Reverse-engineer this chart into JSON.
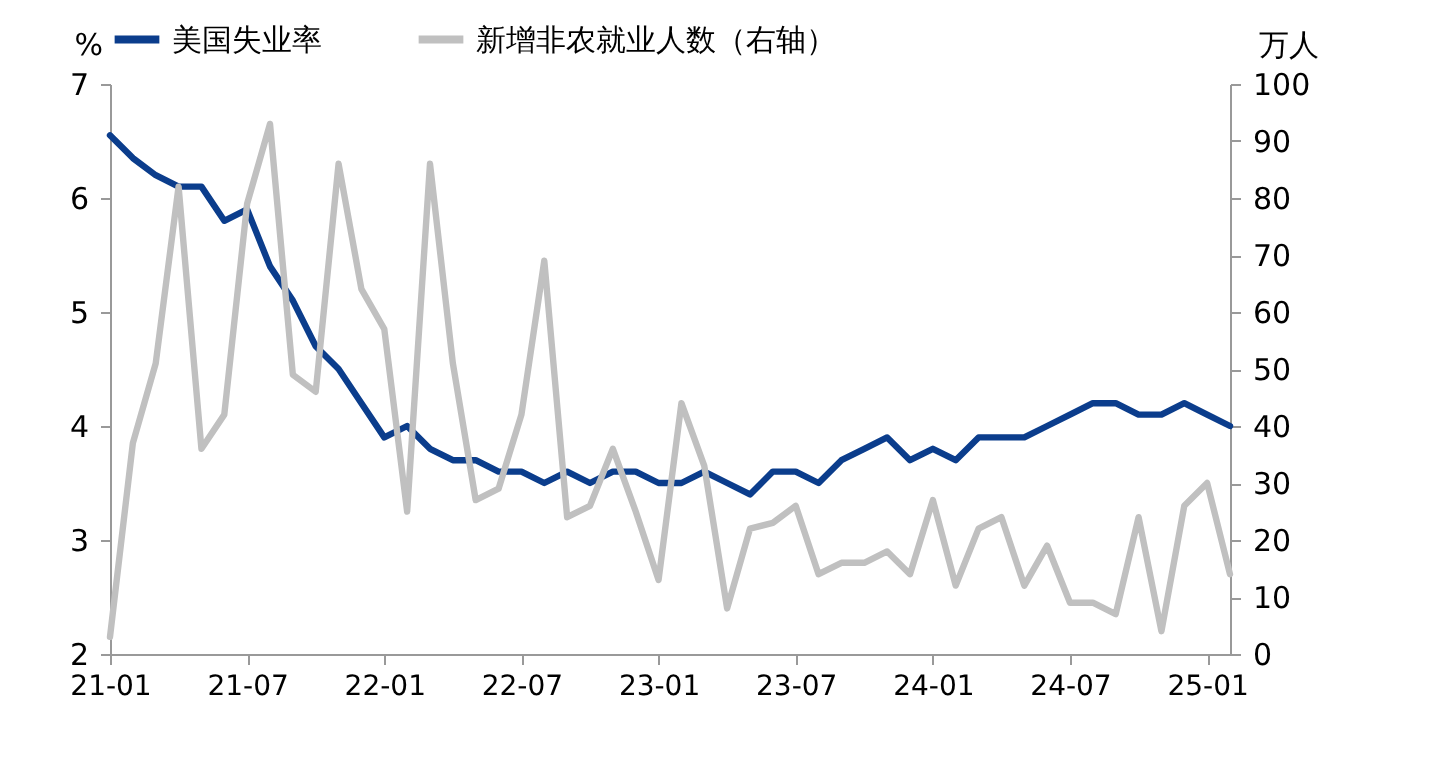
{
  "chart_data": {
    "type": "line",
    "categories": [
      "21-01",
      null,
      null,
      null,
      null,
      null,
      "21-07",
      null,
      null,
      null,
      null,
      null,
      "22-01",
      null,
      null,
      null,
      null,
      null,
      "22-07",
      null,
      null,
      null,
      null,
      null,
      "23-01",
      null,
      null,
      null,
      null,
      null,
      "23-07",
      null,
      null,
      null,
      null,
      null,
      "24-01",
      null,
      null,
      null,
      null,
      null,
      "24-07",
      null,
      null,
      null,
      null,
      null,
      "25-01",
      null
    ],
    "series": [
      {
        "name": "美国失业率",
        "color": "#0b3d8c",
        "values": [
          6.55,
          6.35,
          6.2,
          6.1,
          6.1,
          5.8,
          5.9,
          5.4,
          5.1,
          4.7,
          4.5,
          4.2,
          3.9,
          4.0,
          3.8,
          3.7,
          3.7,
          3.6,
          3.6,
          3.5,
          3.6,
          3.5,
          3.6,
          3.6,
          3.5,
          3.5,
          3.6,
          3.5,
          3.4,
          3.6,
          3.6,
          3.5,
          3.7,
          3.8,
          3.9,
          3.7,
          3.8,
          3.7,
          3.9,
          3.9,
          3.9,
          4.0,
          4.1,
          4.2,
          4.2,
          4.1,
          4.1,
          4.2,
          4.1,
          4.0
        ]
      },
      {
        "name": "新增非农就业人数（右轴）",
        "color": "#c0c0c0",
        "axis": "y2",
        "values": [
          3,
          37,
          51,
          82,
          36,
          42,
          79,
          93,
          49,
          46,
          86,
          64,
          57,
          25,
          86,
          51,
          27,
          29,
          42,
          69,
          24,
          26,
          36,
          25,
          13,
          44,
          33,
          8,
          22,
          23,
          26,
          14,
          16,
          16,
          18,
          14,
          27,
          12,
          22,
          24,
          12,
          19,
          9,
          9,
          7,
          24,
          4,
          26,
          30,
          14
        ]
      }
    ],
    "ylabel": "%",
    "y2label": "万人",
    "ylim": [
      2,
      7
    ],
    "yticks": [
      2,
      3,
      4,
      5,
      6,
      7
    ],
    "y2lim": [
      0,
      100
    ],
    "y2ticks": [
      0,
      10,
      20,
      30,
      40,
      50,
      60,
      70,
      80,
      90,
      100
    ],
    "legend": "top"
  }
}
